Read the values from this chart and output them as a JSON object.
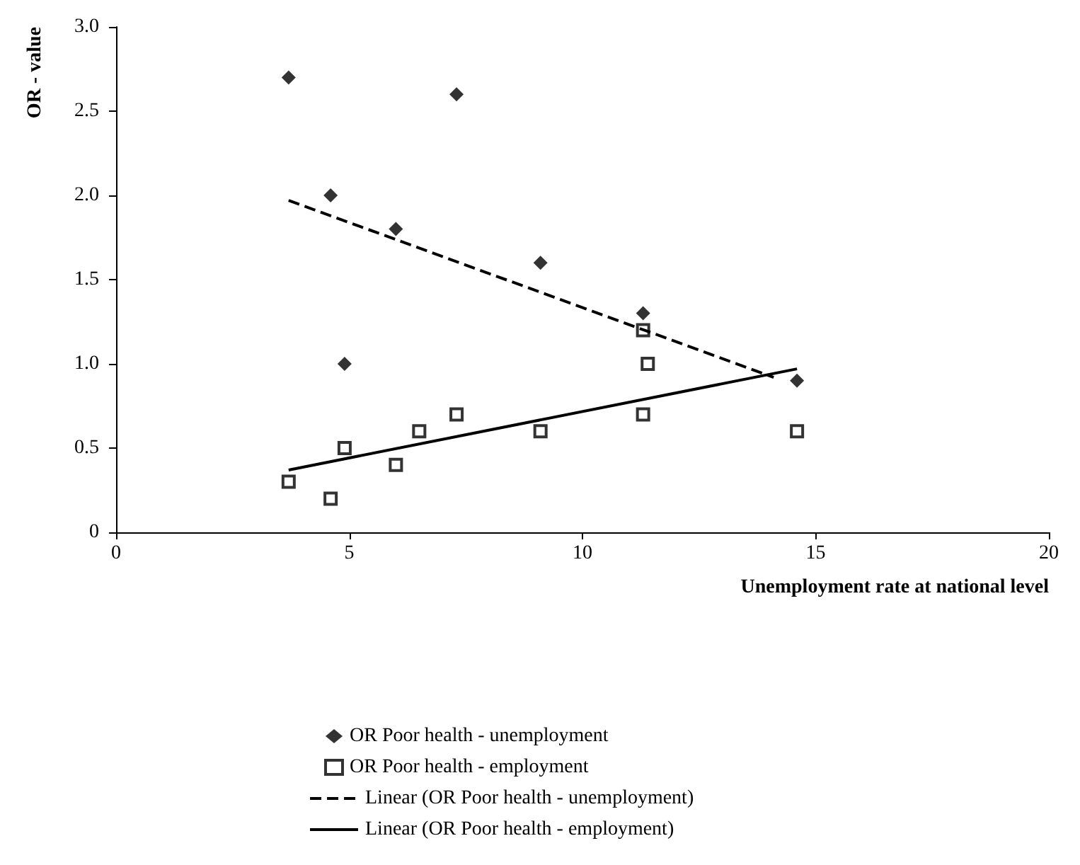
{
  "chart_data": {
    "type": "scatter",
    "xlabel": "Unemployment rate at national level",
    "ylabel": "OR - value",
    "xlim": [
      0,
      20
    ],
    "xticks": [
      0,
      5,
      10,
      15,
      20
    ],
    "ylim": [
      0,
      3
    ],
    "yticks": [
      0,
      0.5,
      {
        "value": 1,
        "label": "1.0"
      },
      1.5,
      {
        "value": 2,
        "label": "2.0"
      },
      2.5,
      {
        "value": 3,
        "label": "3.0"
      }
    ],
    "grid": false,
    "legend": "bottom",
    "series": [
      {
        "name": "OR Poor health - unemployment",
        "marker": "diamond",
        "color": "#000000",
        "x": [
          3.7,
          4.6,
          4.9,
          6.0,
          7.3,
          9.1,
          11.3,
          14.6
        ],
        "values": [
          2.7,
          2.0,
          1.0,
          1.8,
          2.6,
          1.6,
          1.3,
          0.9
        ]
      },
      {
        "name": "OR Poor health - employment",
        "marker": "square",
        "color": "#000000",
        "x": [
          3.7,
          4.6,
          4.9,
          6.0,
          6.5,
          7.3,
          9.1,
          11.3,
          11.3,
          11.4,
          14.6
        ],
        "values": [
          0.3,
          0.2,
          0.5,
          0.4,
          0.6,
          0.7,
          0.6,
          0.7,
          1.2,
          1.0,
          0.6
        ]
      },
      {
        "name": "Linear (OR Poor health - unemployment)",
        "type": "line",
        "line_style": "dashed",
        "color": "#000000",
        "x": [
          3.7,
          14.1
        ],
        "values": [
          1.97,
          0.92
        ]
      },
      {
        "name": "Linear (OR Poor health - employment)",
        "type": "line",
        "line_style": "solid",
        "color": "#000000",
        "x": [
          3.7,
          14.6
        ],
        "values": [
          0.37,
          0.97
        ]
      }
    ]
  }
}
